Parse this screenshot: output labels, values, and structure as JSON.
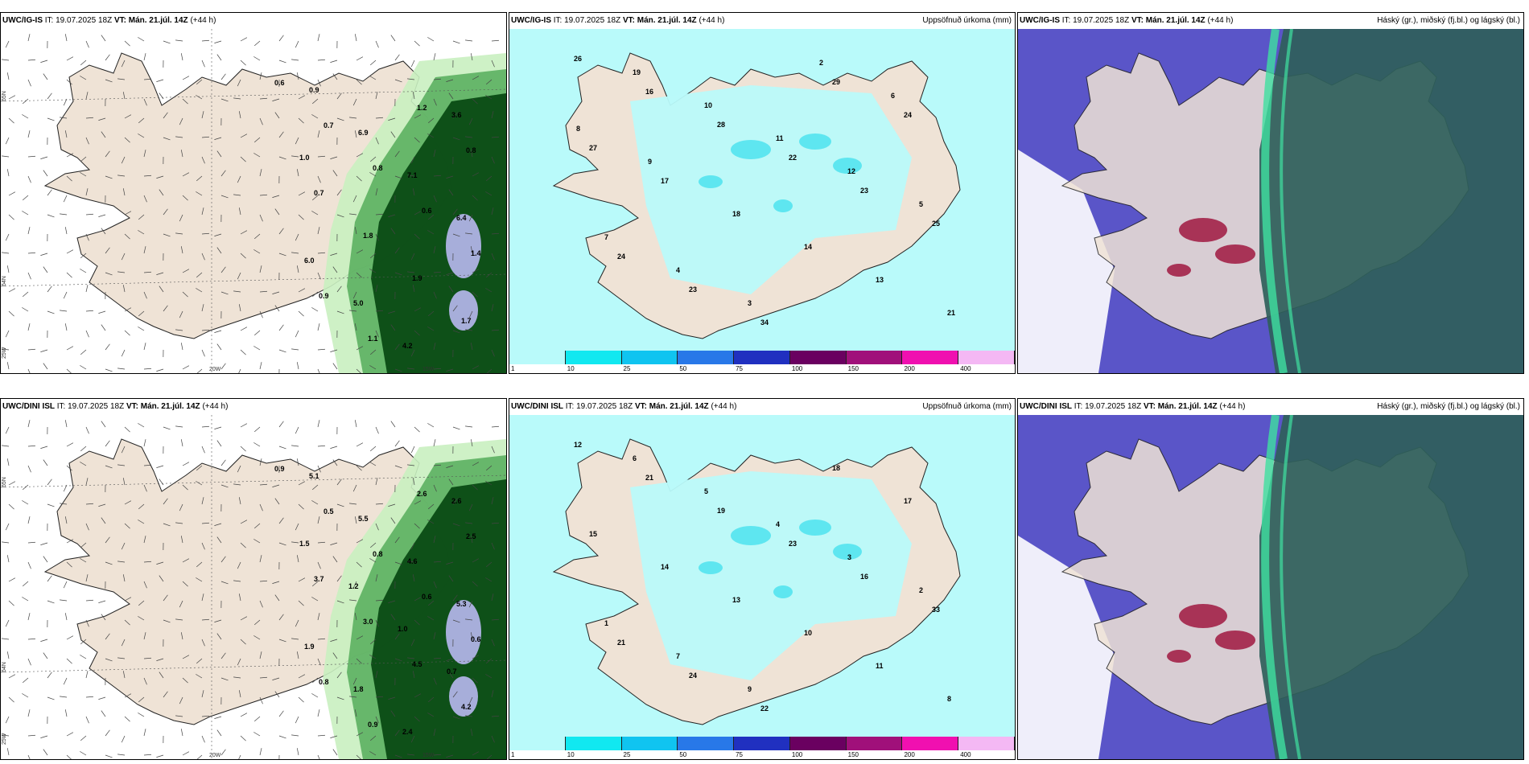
{
  "panels": [
    {
      "model": "UWC/IG-IS",
      "it_label": "IT:",
      "it_value": "19.07.2025 18Z",
      "vt_label": "VT:",
      "vt_value": "Mán. 21.júl. 14Z",
      "lead": "(+44 h)",
      "title": "",
      "values": [
        "0.6",
        "0.7",
        "0.8",
        "0.6",
        "1.4",
        "0.9",
        "1.1",
        "1.2",
        "0.8",
        "0.7",
        "1.8",
        "1.9",
        "1.7",
        "0.9",
        "6.9",
        "7.1",
        "6.4",
        "6.0",
        "5.0",
        "4.2",
        "3.6",
        "1.0"
      ],
      "axes": [
        "65N",
        "64N",
        "25W",
        "20W",
        "15W"
      ]
    },
    {
      "model": "UWC/IG-IS",
      "it_label": "IT:",
      "it_value": "19.07.2025 18Z",
      "vt_label": "VT:",
      "vt_value": "Mán. 21.júl. 14Z",
      "lead": "(+44 h)",
      "title": "Uppsöfnuð úrkoma (mm)",
      "values": [
        "26",
        "16",
        "28",
        "22",
        "23",
        "25",
        "24",
        "23",
        "34",
        "29",
        "24",
        "27",
        "17",
        "18",
        "14",
        "13",
        "21",
        "19",
        "10",
        "11",
        "12",
        "5",
        "7",
        "4",
        "3",
        "2",
        "6",
        "8",
        "9"
      ],
      "colorbar": [
        "1",
        "10",
        "25",
        "50",
        "75",
        "100",
        "150",
        "200",
        "400"
      ]
    },
    {
      "model": "UWC/IG-IS",
      "it_label": "IT:",
      "it_value": "19.07.2025 18Z",
      "vt_label": "VT:",
      "vt_value": "Mán. 21.júl. 14Z",
      "lead": "(+44 h)",
      "title": "Háský (gr.), miðský (fj.bl.) og lágský (bl.)"
    },
    {
      "model": "UWC/DINI ISL",
      "it_label": "IT:",
      "it_value": "19.07.2025 18Z",
      "vt_label": "VT:",
      "vt_value": "Mán. 21.júl. 14Z",
      "lead": "(+44 h)",
      "title": "",
      "values": [
        "0.9",
        "0.5",
        "0.8",
        "0.6",
        "0.6",
        "0.8",
        "0.9",
        "2.6",
        "2.5",
        "3.7",
        "3.0",
        "4.5",
        "4.2",
        "5.1",
        "5.5",
        "4.6",
        "5.3",
        "1.9",
        "1.8",
        "2.4",
        "2.6",
        "1.5",
        "1.2",
        "1.0",
        "0.7"
      ],
      "axes": [
        "65N",
        "64N",
        "25W",
        "20W",
        "15W"
      ]
    },
    {
      "model": "UWC/DINI ISL",
      "it_label": "IT:",
      "it_value": "19.07.2025 18Z",
      "vt_label": "VT:",
      "vt_value": "Mán. 21.júl. 14Z",
      "lead": "(+44 h)",
      "title": "Uppsöfnuð úrkoma (mm)",
      "values": [
        "12",
        "21",
        "19",
        "23",
        "16",
        "33",
        "21",
        "24",
        "22",
        "18",
        "17",
        "15",
        "14",
        "13",
        "10",
        "11",
        "8",
        "6",
        "5",
        "4",
        "3",
        "2",
        "1",
        "7",
        "9"
      ],
      "colorbar": [
        "1",
        "10",
        "25",
        "50",
        "75",
        "100",
        "150",
        "200",
        "400"
      ]
    },
    {
      "model": "UWC/DINI ISL",
      "it_label": "IT:",
      "it_value": "19.07.2025 18Z",
      "vt_label": "VT:",
      "vt_value": "Mán. 21.júl. 14Z",
      "lead": "(+44 h)",
      "title": "Háský (gr.), miðský (fj.bl.) og lágský (bl.)"
    }
  ],
  "colors": {
    "land": "#efe3d6",
    "precip_light": "#b9fafa",
    "precip_mid": "#5ee6f0",
    "precip_high": "#19c8e6",
    "green_light": "#c9f0c0",
    "green_dark": "#0a4a14",
    "cloud_low": "#5a55c8",
    "cloud_high": "#2f5f5a",
    "cloud_mid": "#3fe0a0",
    "red": "#a01840"
  },
  "colorbar_colors": [
    "#b9fafa",
    "#11e8f0",
    "#10c4f0",
    "#2878e8",
    "#2030c0",
    "#6a0060",
    "#a0107a",
    "#f010b0",
    "#f4b8f4"
  ]
}
